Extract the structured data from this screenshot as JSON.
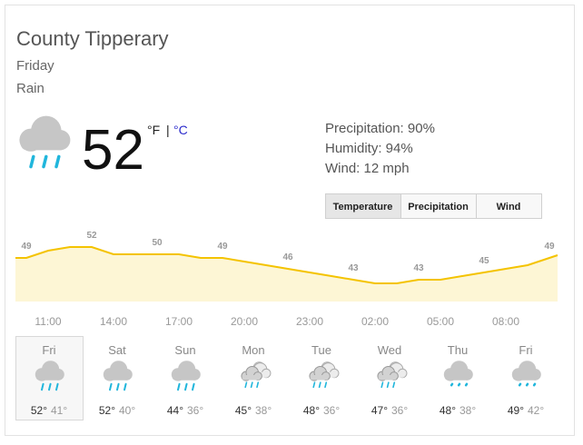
{
  "header": {
    "location": "County Tipperary",
    "day": "Friday",
    "condition": "Rain"
  },
  "current": {
    "temperature": 52,
    "unit_f": "°F",
    "separator": "|",
    "unit_c": "°C",
    "icon": "rain"
  },
  "details": [
    "Precipitation: 90%",
    "Humidity: 94%",
    "Wind: 12 mph"
  ],
  "tabs": [
    "Temperature",
    "Precipitation",
    "Wind"
  ],
  "selected_tab": 0,
  "temperature_chart": {
    "values": [
      49,
      51,
      52,
      52,
      50,
      50,
      50,
      50,
      49,
      49,
      48,
      47,
      46,
      45,
      44,
      43,
      42,
      42,
      43,
      43,
      44,
      45,
      46,
      47,
      49
    ],
    "line_color": "#f4c300",
    "fill_color": "#fdf6d5",
    "time_labels": [
      "11:00",
      "14:00",
      "17:00",
      "20:00",
      "23:00",
      "02:00",
      "05:00",
      "08:00"
    ]
  },
  "forecast": [
    {
      "day": "Fri",
      "high": "52°",
      "low": "41°",
      "icon": "rain"
    },
    {
      "day": "Sat",
      "high": "52°",
      "low": "40°",
      "icon": "rain"
    },
    {
      "day": "Sun",
      "high": "44°",
      "low": "36°",
      "icon": "rain"
    },
    {
      "day": "Mon",
      "high": "45°",
      "low": "38°",
      "icon": "partly-rain"
    },
    {
      "day": "Tue",
      "high": "48°",
      "low": "36°",
      "icon": "partly-rain"
    },
    {
      "day": "Wed",
      "high": "47°",
      "low": "36°",
      "icon": "partly-rain"
    },
    {
      "day": "Thu",
      "high": "48°",
      "low": "38°",
      "icon": "light-rain"
    },
    {
      "day": "Fri",
      "high": "49°",
      "low": "42°",
      "icon": "light-rain"
    }
  ],
  "selected_day": 0
}
